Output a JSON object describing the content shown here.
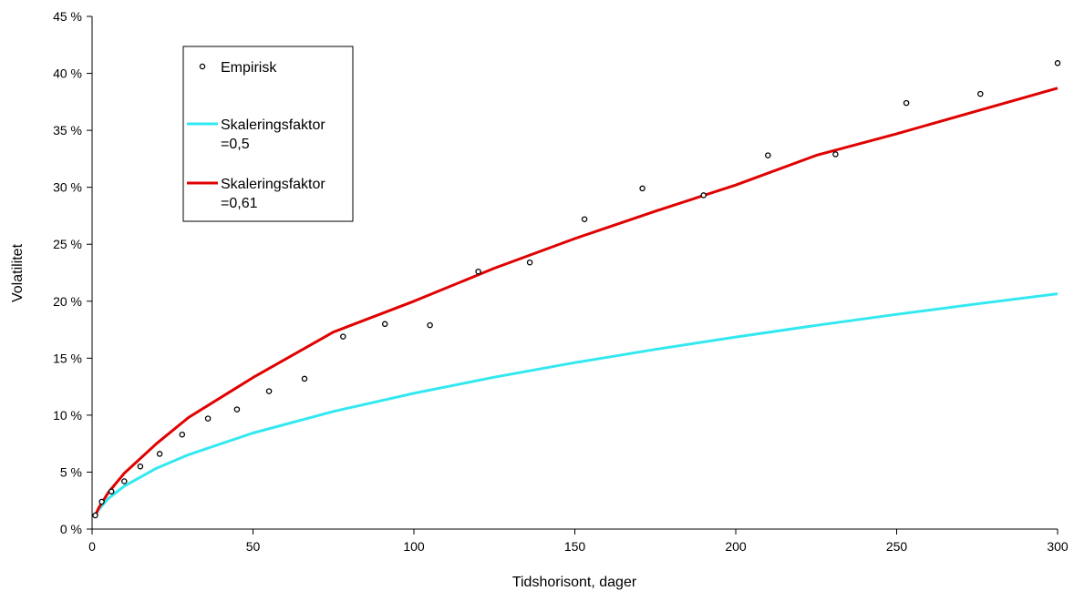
{
  "chart_data": {
    "type": "line",
    "xlabel": "Tidshorisont, dager",
    "ylabel": "Volatilitet",
    "xlim": [
      0,
      300
    ],
    "ylim": [
      0,
      45
    ],
    "x_ticks": [
      0,
      50,
      100,
      150,
      200,
      250,
      300
    ],
    "x_tick_labels": [
      "0",
      "50",
      "100",
      "150",
      "200",
      "250",
      "300"
    ],
    "y_ticks": [
      0,
      5,
      10,
      15,
      20,
      25,
      30,
      35,
      40,
      45
    ],
    "y_tick_labels": [
      "0 %",
      "5 %",
      "10 %",
      "15 %",
      "20 %",
      "25 %",
      "30 %",
      "35 %",
      "40 %",
      "45 %"
    ],
    "grid": false,
    "legend_position": "top-left",
    "series": [
      {
        "name": "Empirisk",
        "kind": "scatter",
        "color": "#000000",
        "x": [
          1,
          3,
          6,
          10,
          15,
          21,
          28,
          36,
          45,
          55,
          66,
          78,
          91,
          105,
          120,
          136,
          153,
          171,
          190,
          210,
          231,
          253,
          276,
          300
        ],
        "y": [
          1.2,
          2.4,
          3.3,
          4.2,
          5.5,
          6.6,
          8.3,
          9.7,
          10.5,
          12.1,
          13.2,
          16.9,
          18.0,
          17.9,
          22.6,
          23.4,
          27.2,
          29.9,
          29.3,
          32.8,
          32.9,
          37.4,
          38.2,
          40.9
        ]
      },
      {
        "name": "Skaleringsfaktor\n=0,5",
        "legend_lines": [
          "Skaleringsfaktor",
          "=0,5"
        ],
        "kind": "line",
        "color": "#33e8f0",
        "x": [
          1,
          2,
          5,
          10,
          20,
          30,
          50,
          75,
          100,
          125,
          150,
          175,
          200,
          225,
          250,
          275,
          300
        ],
        "y": [
          1.19,
          1.69,
          2.67,
          3.77,
          5.34,
          6.53,
          8.43,
          10.33,
          11.92,
          13.33,
          14.61,
          15.77,
          16.86,
          17.88,
          18.85,
          19.77,
          20.65
        ]
      },
      {
        "name": "Skaleringsfaktor\n=0,61",
        "legend_lines": [
          "Skaleringsfaktor",
          "=0,61"
        ],
        "kind": "line",
        "color": "#e00000",
        "x": [
          1,
          2,
          5,
          10,
          20,
          30,
          50,
          75,
          100,
          125,
          150,
          175,
          200,
          225,
          250,
          275,
          300
        ],
        "y": [
          1.2,
          1.83,
          3.2,
          4.9,
          7.5,
          9.8,
          13.3,
          17.3,
          20.0,
          22.9,
          25.5,
          27.9,
          30.2,
          32.8,
          34.7,
          36.7,
          38.7
        ]
      }
    ]
  }
}
